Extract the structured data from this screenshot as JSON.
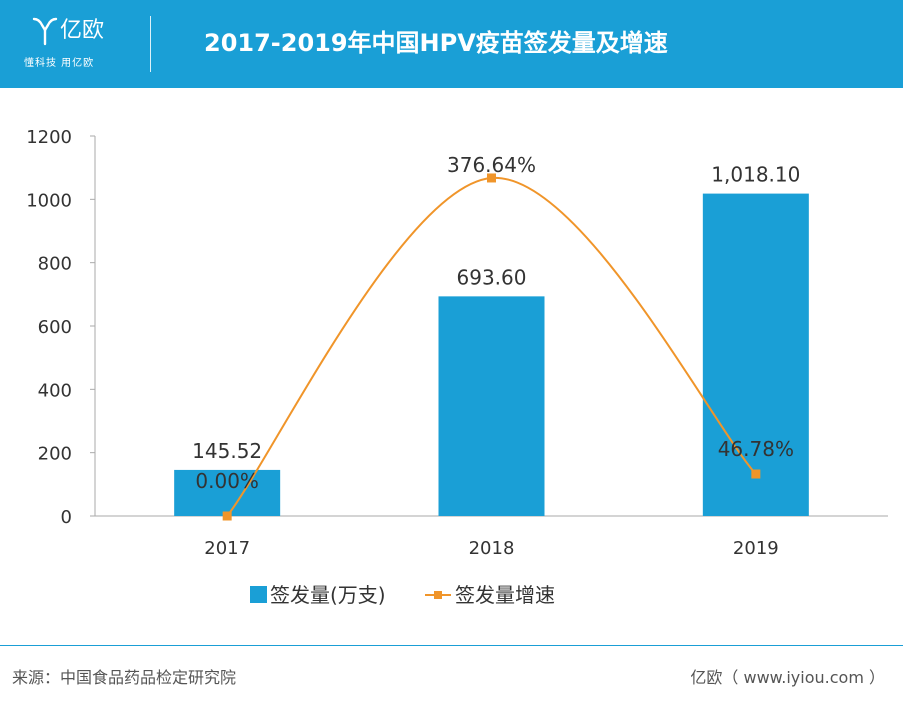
{
  "header": {
    "logo_name": "亿欧",
    "logo_slogan": "懂科技 用亿欧",
    "title": "2017-2019年中国HPV疫苗签发量及增速"
  },
  "chart_data": {
    "type": "bar",
    "title": "2017-2019年中国HPV疫苗签发量及增速",
    "categories": [
      "2017",
      "2018",
      "2019"
    ],
    "ylim": [
      0,
      1200
    ],
    "yticks": [
      "0",
      "200",
      "400",
      "600",
      "800",
      "1000",
      "1200"
    ],
    "series": [
      {
        "name": "签发量(万支)",
        "type": "bar",
        "color": "#1a9fd6",
        "values": [
          145.52,
          693.6,
          1018.1
        ],
        "labels": [
          "145.52",
          "693.60",
          "1,018.10"
        ]
      },
      {
        "name": "签发量增速",
        "type": "line",
        "color": "#f0952a",
        "values": [
          0.0,
          376.64,
          46.78
        ],
        "labels": [
          "0.00%",
          "376.64%",
          "46.78%"
        ],
        "ylim": [
          0,
          400
        ]
      }
    ],
    "legend": "bottom",
    "grid": false
  },
  "footer": {
    "source": "来源：中国食品药品检定研究院",
    "brand": "亿欧（ www.iyiou.com ）"
  }
}
